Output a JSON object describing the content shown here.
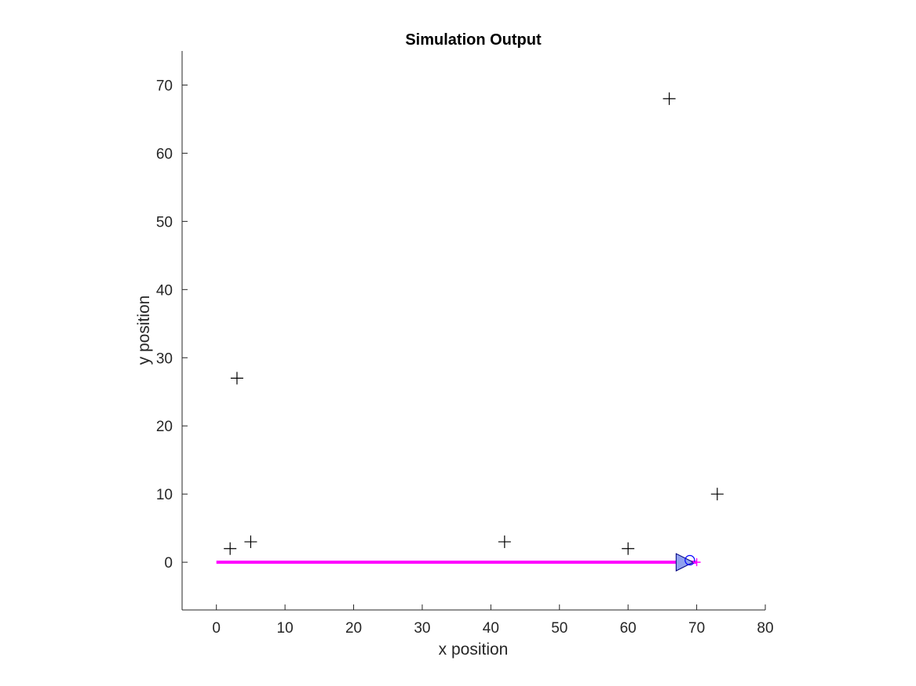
{
  "chart_data": {
    "type": "scatter",
    "title": "Simulation Output",
    "xlabel": "x position",
    "ylabel": "y position",
    "xlim": [
      -5,
      80
    ],
    "ylim": [
      -7,
      75
    ],
    "xticks": [
      "0",
      "10",
      "20",
      "30",
      "40",
      "50",
      "60",
      "70",
      "80"
    ],
    "yticks": [
      "0",
      "10",
      "20",
      "30",
      "40",
      "50",
      "60",
      "70"
    ],
    "grid": false,
    "legend": "none",
    "landmarks": {
      "marker": "plus",
      "color": "#000000",
      "points": [
        {
          "x": 2,
          "y": 2
        },
        {
          "x": 3,
          "y": 27
        },
        {
          "x": 5,
          "y": 3
        },
        {
          "x": 42,
          "y": 3
        },
        {
          "x": 60,
          "y": 2
        },
        {
          "x": 66,
          "y": 68
        },
        {
          "x": 73,
          "y": 10
        }
      ]
    },
    "path": {
      "color": "#ff00ff",
      "points": [
        {
          "x": 0,
          "y": 0
        },
        {
          "x": 70,
          "y": 0
        }
      ]
    },
    "robot": {
      "x": 67,
      "y": 0,
      "heading_deg": 0,
      "fill": "#8fa0ef",
      "stroke": "#000080"
    },
    "estimate": {
      "x": 69,
      "y": 0.3,
      "marker": "circle",
      "color": "#0000ff"
    }
  }
}
